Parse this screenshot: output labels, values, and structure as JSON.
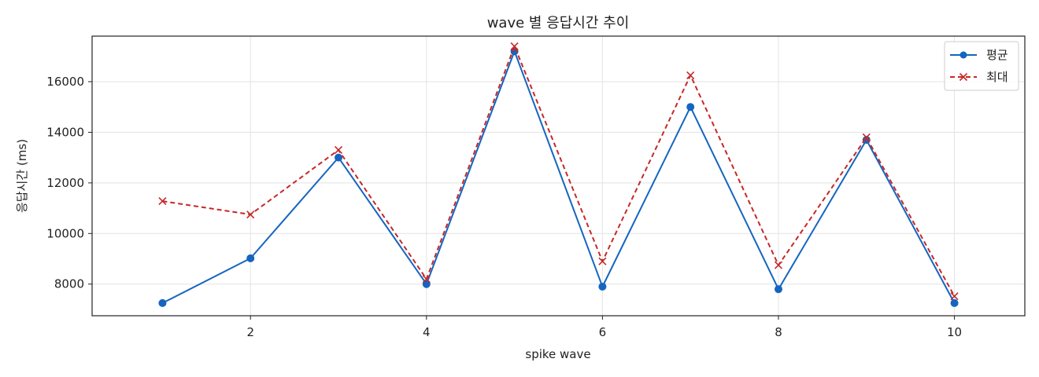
{
  "chart_data": {
    "type": "line",
    "title": "wave 별 응답시간 추이",
    "xlabel": "spike wave",
    "ylabel": "응답시간 (ms)",
    "x": [
      1,
      2,
      3,
      4,
      5,
      6,
      7,
      8,
      9,
      10
    ],
    "xlim": [
      0.2,
      10.8
    ],
    "ylim": [
      6750,
      17800
    ],
    "x_ticks": [
      2,
      4,
      6,
      8,
      10
    ],
    "y_ticks": [
      8000,
      10000,
      12000,
      14000,
      16000
    ],
    "grid": true,
    "legend_position": "top-right",
    "series": [
      {
        "name": "평균",
        "color": "#1565c0",
        "line_style": "solid",
        "marker": "circle",
        "values": [
          7250,
          9020,
          13000,
          8000,
          17200,
          7900,
          15000,
          7800,
          13700,
          7250
        ]
      },
      {
        "name": "최대",
        "color": "#c62828",
        "line_style": "dashed",
        "marker": "x",
        "values": [
          11280,
          10750,
          13300,
          8200,
          17400,
          8900,
          16250,
          8750,
          13800,
          7520
        ]
      }
    ]
  }
}
